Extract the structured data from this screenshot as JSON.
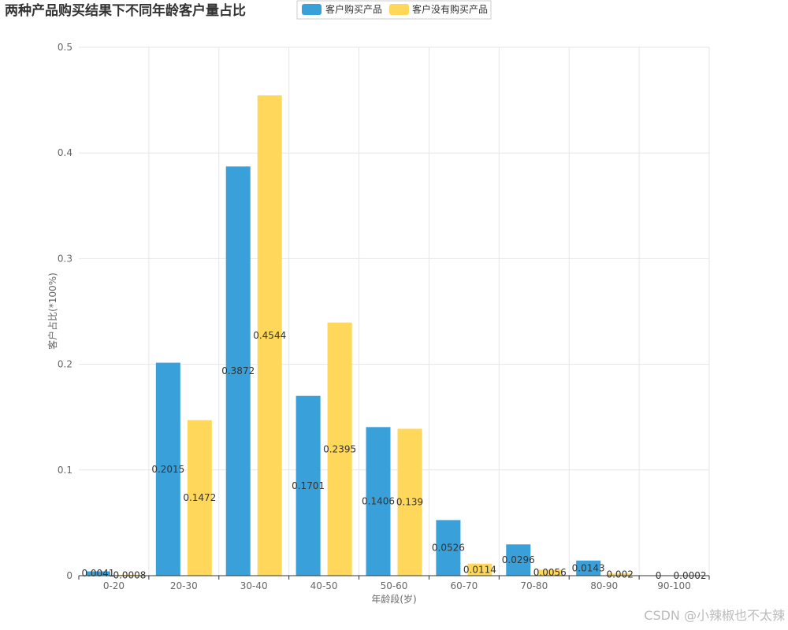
{
  "chart_data": {
    "type": "bar",
    "title": "两种产品购买结果下不同年龄客户量占比",
    "xlabel": "年龄段(岁)",
    "ylabel": "客户占比(*100%)",
    "categories": [
      "0-20",
      "20-30",
      "30-40",
      "40-50",
      "50-60",
      "60-70",
      "70-80",
      "80-90",
      "90-100"
    ],
    "series": [
      {
        "name": "客户购买产品",
        "color": "#3aa0da",
        "values": [
          0.0041,
          0.2015,
          0.3872,
          0.1701,
          0.1406,
          0.0526,
          0.0296,
          0.0143,
          0
        ]
      },
      {
        "name": "客户没有购买产品",
        "color": "#ffd75a",
        "values": [
          0.0008,
          0.1472,
          0.4544,
          0.2395,
          0.139,
          0.0114,
          0.0056,
          0.002,
          0.0002
        ]
      }
    ],
    "ylim": [
      0,
      0.5
    ],
    "yticks": [
      "0",
      "0.1",
      "0.2",
      "0.3",
      "0.4",
      "0.5"
    ],
    "grid": true,
    "legend_position": "top"
  },
  "watermark": "CSDN @小辣椒也不太辣"
}
